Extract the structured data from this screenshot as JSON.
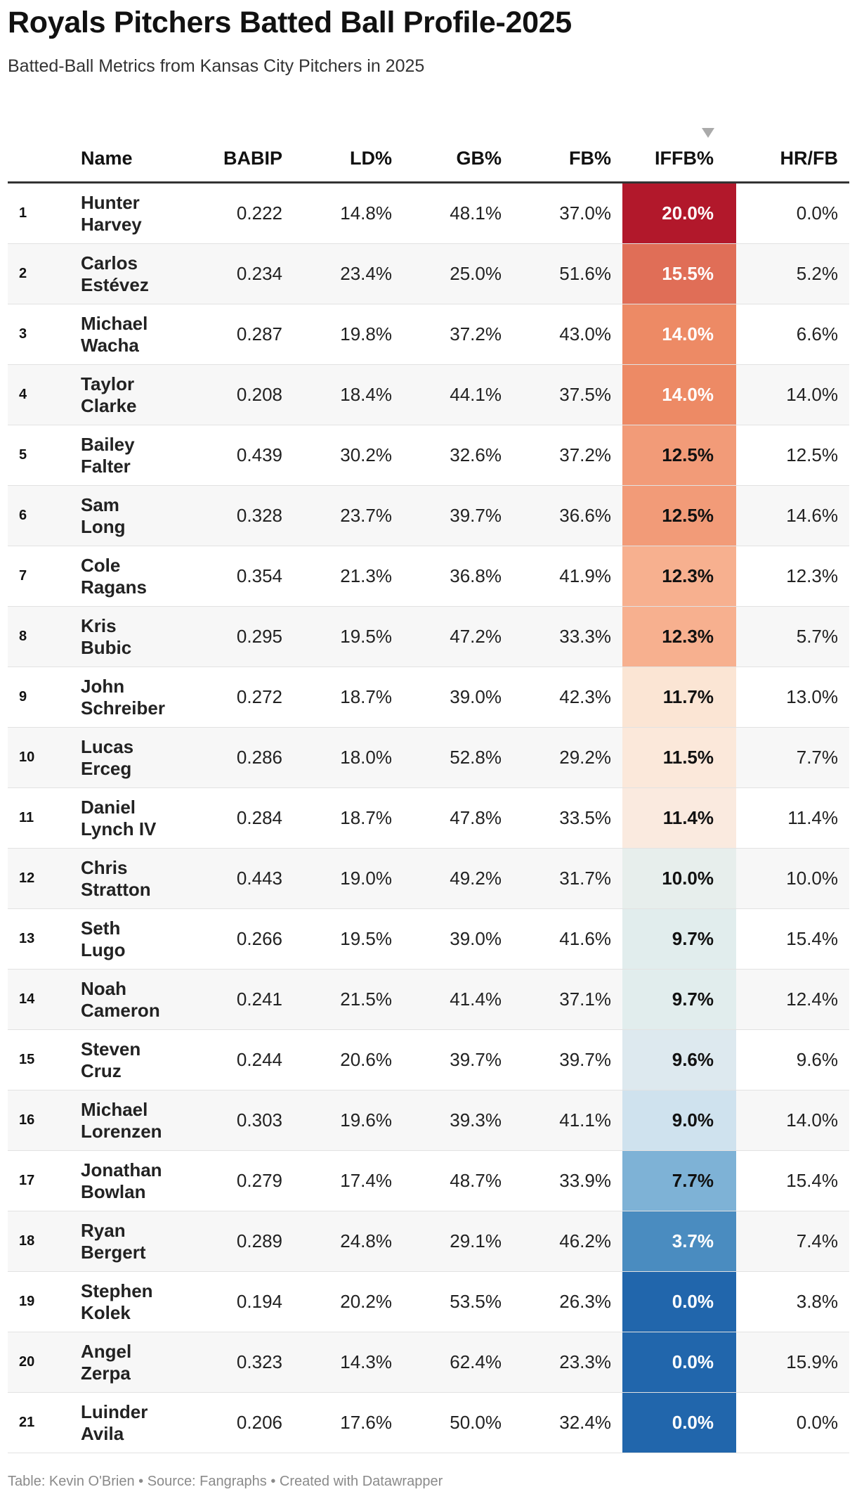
{
  "header": {
    "title": "Royals Pitchers Batted Ball Profile-2025",
    "subtitle": "Batted-Ball Metrics from Kansas City Pitchers in 2025"
  },
  "footer": {
    "text": "Table: Kevin O'Brien • Source: Fangraphs • Created with Datawrapper"
  },
  "chart_data": {
    "type": "table",
    "sorted_by": "IFFB%",
    "sort_order": "descending",
    "columns": [
      "",
      "Name",
      "BABIP",
      "LD%",
      "GB%",
      "FB%",
      "IFFB%",
      "HR/FB"
    ],
    "heatmap_column": "IFFB%",
    "heatmap_colors": {
      "high": "#b2182b",
      "upper": "#ef8a62",
      "mid_high": "#fde6d0",
      "mid_low": "#e3efef",
      "lower": "#67a9cf",
      "low": "#2166ac"
    },
    "rows": [
      {
        "rank": "1",
        "first": "Hunter",
        "last": "Harvey",
        "babip": "0.222",
        "ld": "14.8%",
        "gb": "48.1%",
        "fb": "37.0%",
        "iffb": "20.0%",
        "hrfb": "0.0%",
        "iffb_bg": "#b2182b",
        "iffb_fg": "#ffffff"
      },
      {
        "rank": "2",
        "first": "Carlos",
        "last": "Estévez",
        "babip": "0.234",
        "ld": "23.4%",
        "gb": "25.0%",
        "fb": "51.6%",
        "iffb": "15.5%",
        "hrfb": "5.2%",
        "iffb_bg": "#e06e57",
        "iffb_fg": "#ffffff"
      },
      {
        "rank": "3",
        "first": "Michael",
        "last": "Wacha",
        "babip": "0.287",
        "ld": "19.8%",
        "gb": "37.2%",
        "fb": "43.0%",
        "iffb": "14.0%",
        "hrfb": "6.6%",
        "iffb_bg": "#ed8a65",
        "iffb_fg": "#ffffff"
      },
      {
        "rank": "4",
        "first": "Taylor",
        "last": "Clarke",
        "babip": "0.208",
        "ld": "18.4%",
        "gb": "44.1%",
        "fb": "37.5%",
        "iffb": "14.0%",
        "hrfb": "14.0%",
        "iffb_bg": "#ed8a65",
        "iffb_fg": "#ffffff"
      },
      {
        "rank": "5",
        "first": "Bailey",
        "last": "Falter",
        "babip": "0.439",
        "ld": "30.2%",
        "gb": "32.6%",
        "fb": "37.2%",
        "iffb": "12.5%",
        "hrfb": "12.5%",
        "iffb_bg": "#f29b78",
        "iffb_fg": "#111111"
      },
      {
        "rank": "6",
        "first": "Sam",
        "last": "Long",
        "babip": "0.328",
        "ld": "23.7%",
        "gb": "39.7%",
        "fb": "36.6%",
        "iffb": "12.5%",
        "hrfb": "14.6%",
        "iffb_bg": "#f29b78",
        "iffb_fg": "#111111"
      },
      {
        "rank": "7",
        "first": "Cole",
        "last": "Ragans",
        "babip": "0.354",
        "ld": "21.3%",
        "gb": "36.8%",
        "fb": "41.9%",
        "iffb": "12.3%",
        "hrfb": "12.3%",
        "iffb_bg": "#f7b08f",
        "iffb_fg": "#111111"
      },
      {
        "rank": "8",
        "first": "Kris",
        "last": "Bubic",
        "babip": "0.295",
        "ld": "19.5%",
        "gb": "47.2%",
        "fb": "33.3%",
        "iffb": "12.3%",
        "hrfb": "5.7%",
        "iffb_bg": "#f7b08f",
        "iffb_fg": "#111111"
      },
      {
        "rank": "9",
        "first": "John",
        "last": "Schreiber",
        "babip": "0.272",
        "ld": "18.7%",
        "gb": "39.0%",
        "fb": "42.3%",
        "iffb": "11.7%",
        "hrfb": "13.0%",
        "iffb_bg": "#fbe5d4",
        "iffb_fg": "#111111"
      },
      {
        "rank": "10",
        "first": "Lucas",
        "last": "Erceg",
        "babip": "0.286",
        "ld": "18.0%",
        "gb": "52.8%",
        "fb": "29.2%",
        "iffb": "11.5%",
        "hrfb": "7.7%",
        "iffb_bg": "#fbe8da",
        "iffb_fg": "#111111"
      },
      {
        "rank": "11",
        "first": "Daniel",
        "last": "Lynch IV",
        "babip": "0.284",
        "ld": "18.7%",
        "gb": "47.8%",
        "fb": "33.5%",
        "iffb": "11.4%",
        "hrfb": "11.4%",
        "iffb_bg": "#faeadf",
        "iffb_fg": "#111111"
      },
      {
        "rank": "12",
        "first": "Chris",
        "last": "Stratton",
        "babip": "0.443",
        "ld": "19.0%",
        "gb": "49.2%",
        "fb": "31.7%",
        "iffb": "10.0%",
        "hrfb": "10.0%",
        "iffb_bg": "#e7eeec",
        "iffb_fg": "#111111"
      },
      {
        "rank": "13",
        "first": "Seth",
        "last": "Lugo",
        "babip": "0.266",
        "ld": "19.5%",
        "gb": "39.0%",
        "fb": "41.6%",
        "iffb": "9.7%",
        "hrfb": "15.4%",
        "iffb_bg": "#e1eded",
        "iffb_fg": "#111111"
      },
      {
        "rank": "14",
        "first": "Noah",
        "last": "Cameron",
        "babip": "0.241",
        "ld": "21.5%",
        "gb": "41.4%",
        "fb": "37.1%",
        "iffb": "9.7%",
        "hrfb": "12.4%",
        "iffb_bg": "#e1eded",
        "iffb_fg": "#111111"
      },
      {
        "rank": "15",
        "first": "Steven",
        "last": "Cruz",
        "babip": "0.244",
        "ld": "20.6%",
        "gb": "39.7%",
        "fb": "39.7%",
        "iffb": "9.6%",
        "hrfb": "9.6%",
        "iffb_bg": "#dde9ef",
        "iffb_fg": "#111111"
      },
      {
        "rank": "16",
        "first": "Michael",
        "last": "Lorenzen",
        "babip": "0.303",
        "ld": "19.6%",
        "gb": "39.3%",
        "fb": "41.1%",
        "iffb": "9.0%",
        "hrfb": "14.0%",
        "iffb_bg": "#cfe2ee",
        "iffb_fg": "#111111"
      },
      {
        "rank": "17",
        "first": "Jonathan",
        "last": "Bowlan",
        "babip": "0.279",
        "ld": "17.4%",
        "gb": "48.7%",
        "fb": "33.9%",
        "iffb": "7.7%",
        "hrfb": "15.4%",
        "iffb_bg": "#7eb2d6",
        "iffb_fg": "#111111"
      },
      {
        "rank": "18",
        "first": "Ryan",
        "last": "Bergert",
        "babip": "0.289",
        "ld": "24.8%",
        "gb": "29.1%",
        "fb": "46.2%",
        "iffb": "3.7%",
        "hrfb": "7.4%",
        "iffb_bg": "#4a8cc0",
        "iffb_fg": "#ffffff"
      },
      {
        "rank": "19",
        "first": "Stephen",
        "last": "Kolek",
        "babip": "0.194",
        "ld": "20.2%",
        "gb": "53.5%",
        "fb": "26.3%",
        "iffb": "0.0%",
        "hrfb": "3.8%",
        "iffb_bg": "#2166ac",
        "iffb_fg": "#ffffff"
      },
      {
        "rank": "20",
        "first": "Angel",
        "last": "Zerpa",
        "babip": "0.323",
        "ld": "14.3%",
        "gb": "62.4%",
        "fb": "23.3%",
        "iffb": "0.0%",
        "hrfb": "15.9%",
        "iffb_bg": "#2166ac",
        "iffb_fg": "#ffffff"
      },
      {
        "rank": "21",
        "first": "Luinder",
        "last": "Avila",
        "babip": "0.206",
        "ld": "17.6%",
        "gb": "50.0%",
        "fb": "32.4%",
        "iffb": "0.0%",
        "hrfb": "0.0%",
        "iffb_bg": "#2166ac",
        "iffb_fg": "#ffffff"
      }
    ]
  }
}
